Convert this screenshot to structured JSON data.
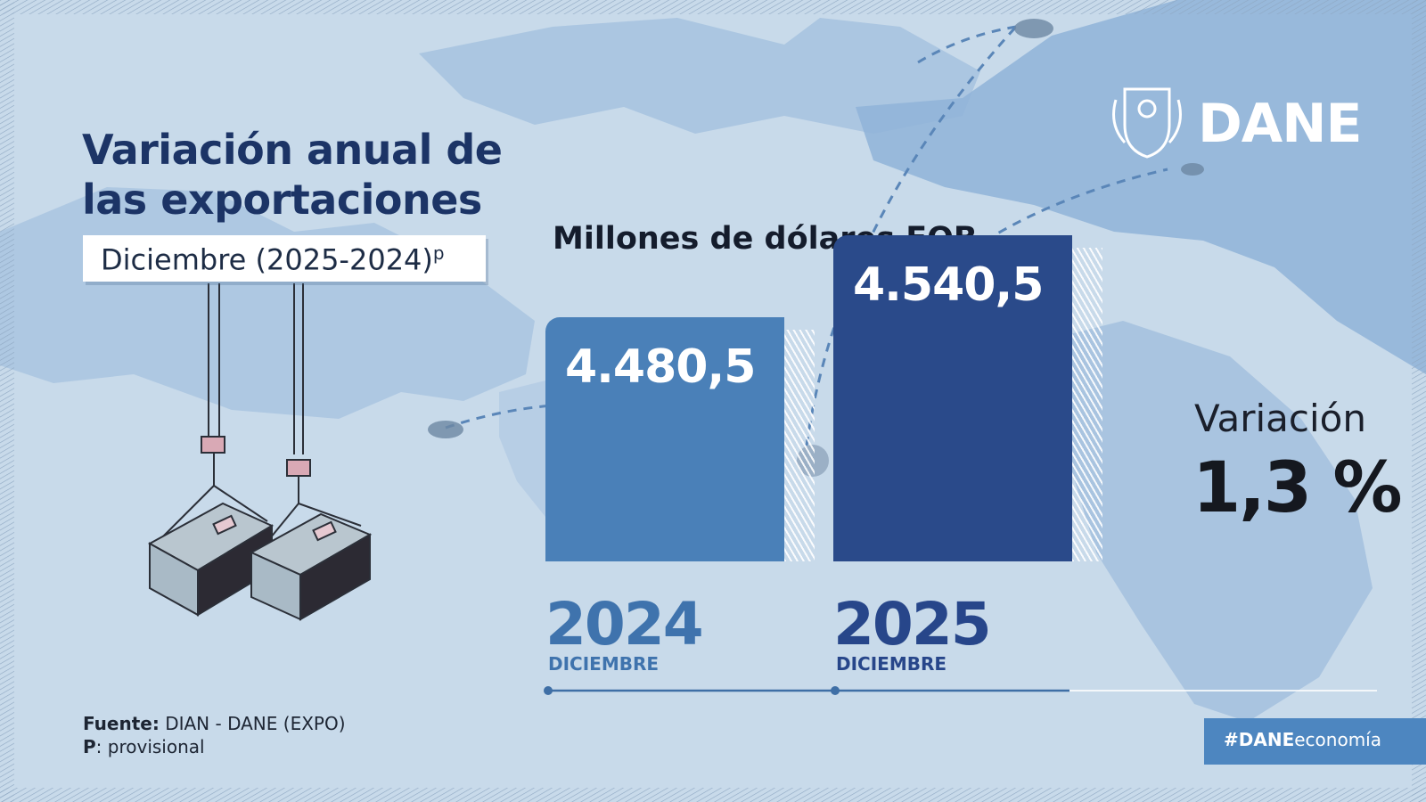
{
  "header": {
    "title_line1": "Variación anual de",
    "title_line2": "las exportaciones",
    "period": "Diciembre (2025-2024)",
    "period_superscript": "p",
    "units": "Millones de dólares FOB"
  },
  "brand": {
    "logo_text": "DANE",
    "hashtag_bold": "#DANE",
    "hashtag_rest": "economía"
  },
  "variation": {
    "label": "Variación",
    "value": "1,3 %"
  },
  "footer": {
    "source_label": "Fuente:",
    "source_value": " DIAN - DANE (EXPO)",
    "note_label": "P",
    "note_value": ": provisional"
  },
  "colors": {
    "background": "#c8daea",
    "bar_2024": "#4a80b8",
    "bar_2025": "#2a4a8a",
    "title": "#1c3466",
    "year_2024": "#3f73ad",
    "year_2025": "#27468a"
  },
  "chart_data": {
    "type": "bar",
    "categories": [
      "2024",
      "2025"
    ],
    "category_sublabels": [
      "DICIEMBRE",
      "DICIEMBRE"
    ],
    "values": [
      4480.5,
      4540.5
    ],
    "value_labels": [
      "4.480,5",
      "4.540,5"
    ],
    "title": "Variación anual de las exportaciones",
    "ylabel": "Millones de dólares FOB",
    "grid": false,
    "legend": "none"
  }
}
